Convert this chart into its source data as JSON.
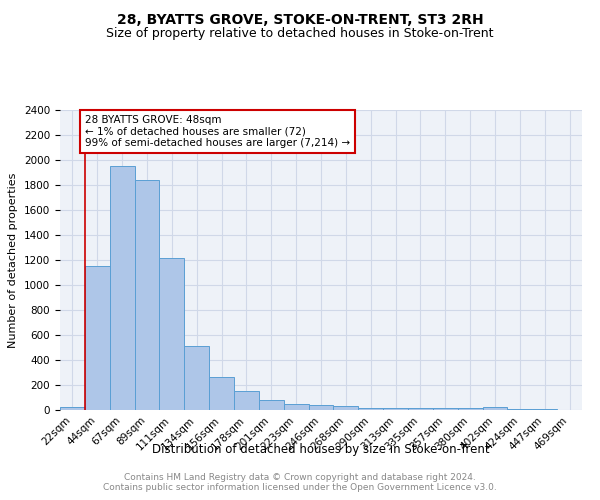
{
  "title": "28, BYATTS GROVE, STOKE-ON-TRENT, ST3 2RH",
  "subtitle": "Size of property relative to detached houses in Stoke-on-Trent",
  "xlabel": "Distribution of detached houses by size in Stoke-on-Trent",
  "ylabel": "Number of detached properties",
  "footer_line1": "Contains HM Land Registry data © Crown copyright and database right 2024.",
  "footer_line2": "Contains public sector information licensed under the Open Government Licence v3.0.",
  "annotation_line1": "28 BYATTS GROVE: 48sqm",
  "annotation_line2": "← 1% of detached houses are smaller (72)",
  "annotation_line3": "99% of semi-detached houses are larger (7,214) →",
  "bar_labels": [
    "22sqm",
    "44sqm",
    "67sqm",
    "89sqm",
    "111sqm",
    "134sqm",
    "156sqm",
    "178sqm",
    "201sqm",
    "223sqm",
    "246sqm",
    "268sqm",
    "290sqm",
    "313sqm",
    "335sqm",
    "357sqm",
    "380sqm",
    "402sqm",
    "424sqm",
    "447sqm",
    "469sqm"
  ],
  "bar_values": [
    28,
    1150,
    1950,
    1840,
    1215,
    515,
    265,
    152,
    82,
    45,
    40,
    35,
    18,
    20,
    18,
    15,
    18,
    22,
    5,
    5,
    0
  ],
  "bar_color": "#aec6e8",
  "bar_edge_color": "#5a9fd4",
  "redline_x": 1.0,
  "ylim": [
    0,
    2400
  ],
  "yticks": [
    0,
    200,
    400,
    600,
    800,
    1000,
    1200,
    1400,
    1600,
    1800,
    2000,
    2200,
    2400
  ],
  "grid_color": "#d0d8e8",
  "background_color": "#eef2f8",
  "annotation_box_color": "#ffffff",
  "annotation_box_edge": "#cc0000",
  "redline_color": "#cc0000",
  "title_fontsize": 10,
  "subtitle_fontsize": 9,
  "xlabel_fontsize": 8.5,
  "ylabel_fontsize": 8,
  "tick_fontsize": 7.5,
  "annotation_fontsize": 7.5,
  "footer_fontsize": 6.5
}
